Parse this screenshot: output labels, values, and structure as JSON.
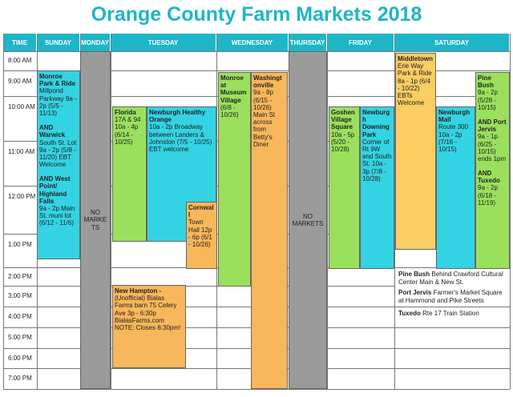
{
  "title": "Orange County Farm Markets 2018",
  "header": [
    "TIME",
    "SUNDAY",
    "MONDAY",
    "TUESDAY",
    "WEDNESDAY",
    "THURSDAY",
    "FRIDAY",
    "SATURDAY"
  ],
  "times": [
    "8:00 AM",
    "9:00 AM",
    "10:00 AM",
    "11:00 AM",
    "12:00 PM",
    "1:00 PM",
    "2:00 PM",
    "3:00 PM",
    "4:00 PM",
    "5:00 PM",
    "6:00 PM",
    "7:00 PM"
  ],
  "events": [
    {
      "color": "#33d3e3",
      "parts": [
        {
          "title": "Monroe Park & Ride",
          "detail": "Millpond Parkway 9a - 2p (5/5 - 11/13)"
        },
        {
          "title": "AND Warwick",
          "detail": "South St. Lot 9a - 2p (5/8 - 11/20) EBT Welcome"
        },
        {
          "title": "AND West Point/ Highland Falls",
          "detail": "9a - 2p Main St. muni lot (6/12 - 11/6)"
        }
      ]
    },
    {
      "color": "#9b9b9b",
      "parts": [
        {
          "title": "",
          "detail": "NO MARKETS"
        }
      ]
    },
    {
      "color": "#9be05c",
      "parts": [
        {
          "title": "Florida",
          "detail": "17A & 94 10a - 4p (6/14 - 10/25)"
        }
      ]
    },
    {
      "color": "#33d3e3",
      "parts": [
        {
          "title": "Newburgh Healthy Orange",
          "detail": "10a - 2p Broadway between Landers & Johnston (7/5 - 10/25) EBT welcome"
        }
      ]
    },
    {
      "color": "#f8b75a",
      "parts": [
        {
          "title": "Cornwall",
          "detail": "Town Hall 12p - 6p (6/1 - 10/26)"
        }
      ]
    },
    {
      "color": "#f8b75a",
      "parts": [
        {
          "title": "New Hampton -",
          "detail": "(Unofficial) Bialas Farms barn 75 Celery Ave 3p - 6:30p BialasFarms.com NOTE: Closes 6:30pm!"
        }
      ]
    },
    {
      "color": "#9be05c",
      "parts": [
        {
          "title": "Monroe at Museum Village",
          "detail": "(6/8 - 10/26)"
        }
      ]
    },
    {
      "color": "#f8b75a",
      "parts": [
        {
          "title": "Washingtonville",
          "detail": "9a - 8p (6/15 - 10/26) Main St across from Betty's Diner"
        }
      ]
    },
    {
      "color": "#9b9b9b",
      "parts": [
        {
          "title": "",
          "detail": "NO MARKETS"
        }
      ]
    },
    {
      "color": "#9be05c",
      "parts": [
        {
          "title": "Goshen Village Square",
          "detail": "10a - 5p (5/20 - 10/28)"
        }
      ]
    },
    {
      "color": "#33d3e3",
      "parts": [
        {
          "title": "Newburgh Downing Park",
          "detail": "Corner of Rt 9W and South St. 10a - 3p (7/8 - 10/28)"
        }
      ]
    },
    {
      "color": "#fbcd63",
      "parts": [
        {
          "title": "Middletown",
          "detail": "Erie Way Park & Ride 8a - 1p (6/4 - 10/22) EBTs Welcome"
        }
      ]
    },
    {
      "color": "#33d3e3",
      "parts": [
        {
          "title": "Newburgh Mall",
          "detail": "Route 300 10a - 2p (7/16 - 10/15)"
        }
      ]
    },
    {
      "color": "#9be05c",
      "parts": [
        {
          "title": "Pine Bush",
          "detail": "9a - 2p (5/28 - 10/15)"
        },
        {
          "title": "AND Port Jervis",
          "detail": "9a - 1p (6/25 - 10/15) ends 1pm"
        },
        {
          "title": "AND Tuxedo",
          "detail": "9a - 2p (6/18 - 11/19)"
        }
      ]
    }
  ],
  "notes": [
    {
      "title": "Pine Bush",
      "detail": "Behind Crawford Cultural Center Main & New St."
    },
    {
      "title": "Port Jervis",
      "detail": "Farmer's Market Square at Hammond and Pike Streets"
    },
    {
      "title": "Tuxedo",
      "detail": "Rte 17 Train Station"
    }
  ]
}
